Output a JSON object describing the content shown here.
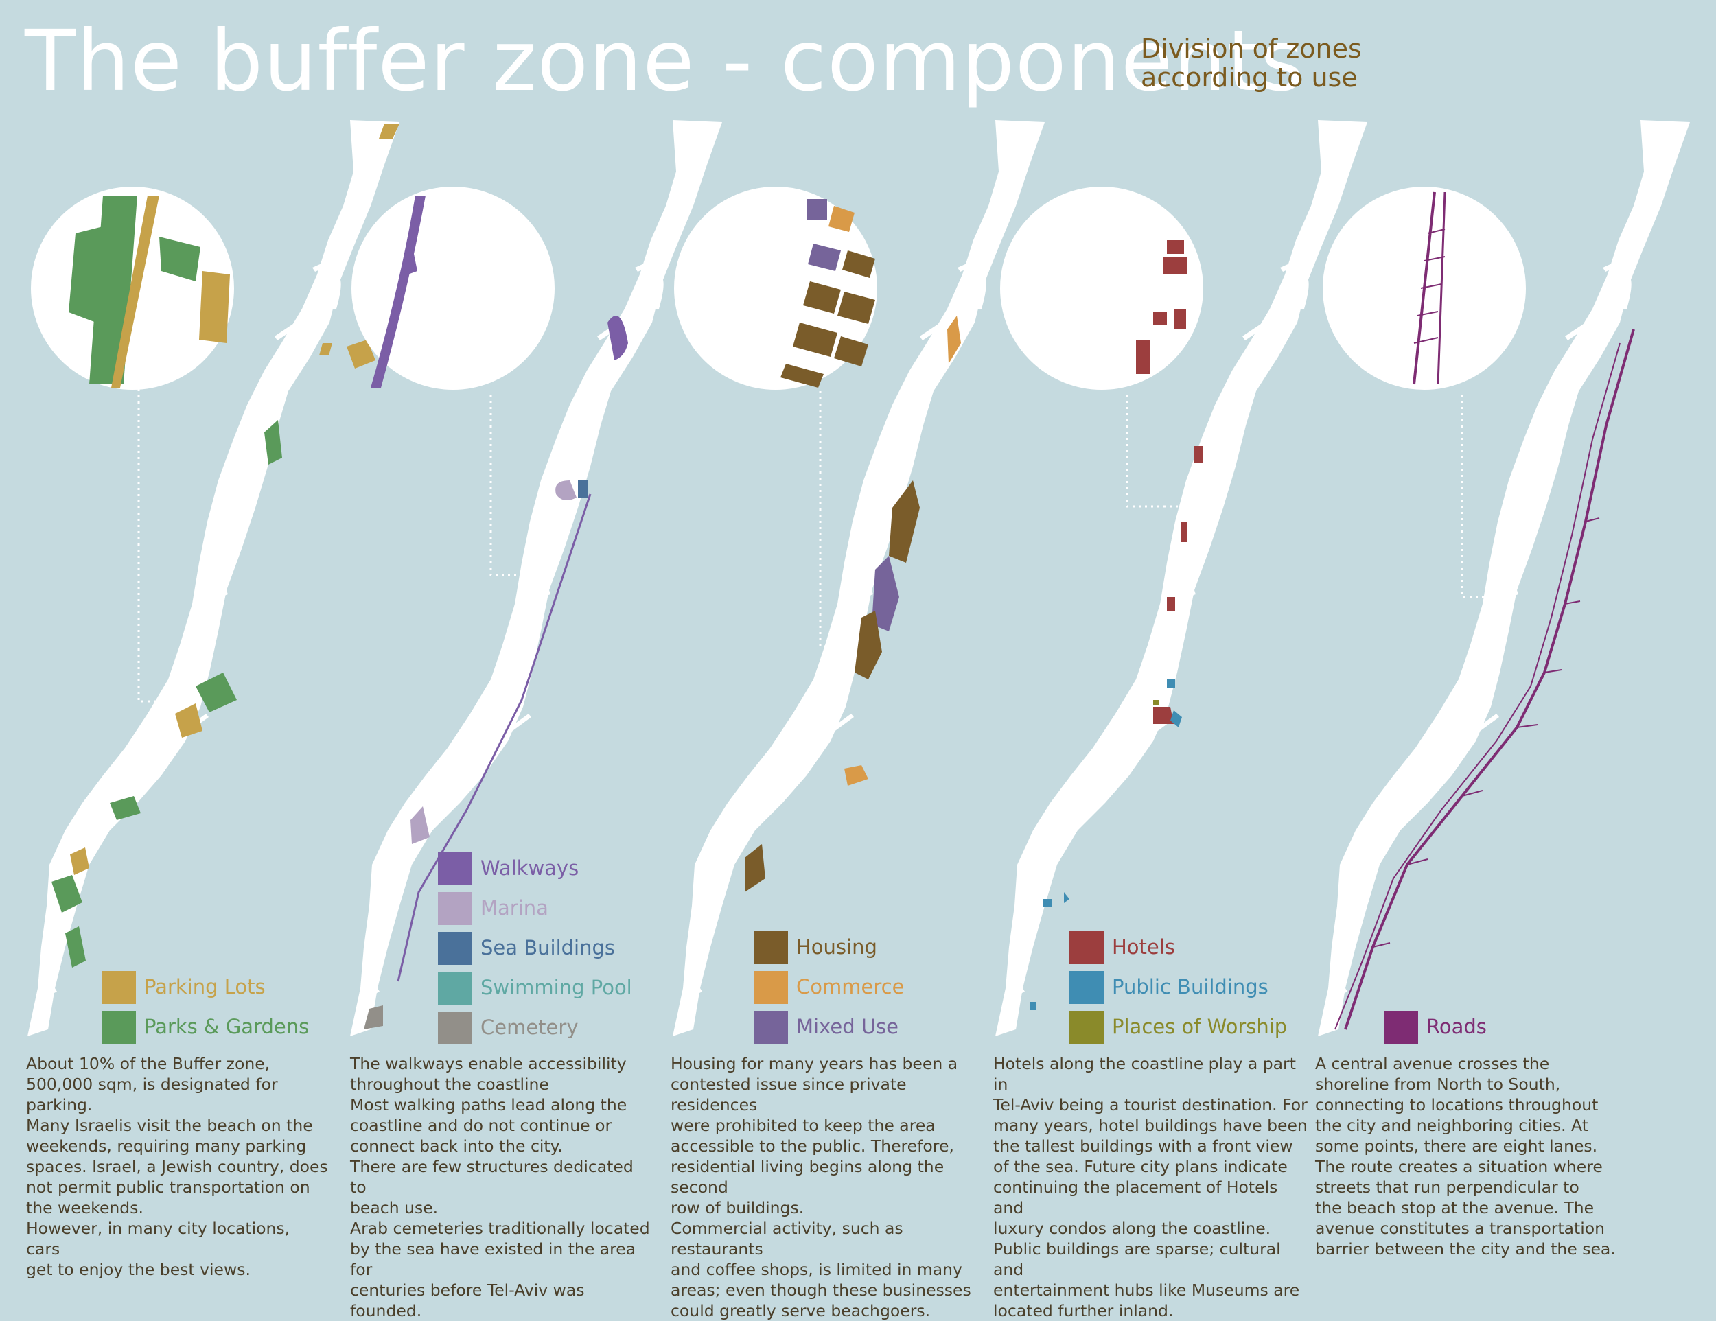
{
  "title": "The buffer zone - components",
  "subtitle": [
    "Division of zones",
    "according to use"
  ],
  "panels": [
    {
      "legend": [
        {
          "label": "Parking Lots",
          "color": "#c6a24a"
        },
        {
          "label": "Parks & Gardens",
          "color": "#5a9a5a"
        }
      ],
      "description": [
        "About 10% of the Buffer zone,",
        "500,000 sqm, is designated for",
        "parking.",
        "Many Israelis visit the beach on the",
        "weekends, requiring many parking",
        "spaces. Israel, a Jewish country, does",
        "not permit public transportation on",
        "the weekends.",
        "However, in many city locations, cars",
        "get to enjoy the best views."
      ]
    },
    {
      "legend": [
        {
          "label": "Walkways",
          "color": "#7b5ea6"
        },
        {
          "label": "Marina",
          "color": "#b3a3c2"
        },
        {
          "label": "Sea Buildings",
          "color": "#4a719a"
        },
        {
          "label": "Swimming Pool",
          "color": "#5fa8a3"
        },
        {
          "label": "Cemetery",
          "color": "#928f89"
        }
      ],
      "description": [
        "The walkways enable accessibility",
        "throughout the coastline",
        "Most walking paths lead along the",
        "coastline and do not continue or",
        "connect back into the city.",
        "There are few structures dedicated to",
        "beach use.",
        "Arab cemeteries traditionally located",
        "by the sea have existed in the area for",
        "centuries before Tel-Aviv was founded."
      ]
    },
    {
      "legend": [
        {
          "label": "Housing",
          "color": "#7a5c2a"
        },
        {
          "label": "Commerce",
          "color": "#d99a48"
        },
        {
          "label": "Mixed Use",
          "color": "#76649a"
        }
      ],
      "description": [
        "Housing for many years has been a",
        "contested issue since private residences",
        "were prohibited to keep the area",
        "accessible to the public. Therefore,",
        "residential living begins along the second",
        "row of buildings.",
        "Commercial activity, such as restaurants",
        "and coffee shops, is limited in many",
        "areas; even though these businesses",
        "could greatly serve beachgoers."
      ]
    },
    {
      "legend": [
        {
          "label": "Hotels",
          "color": "#9c3e3e"
        },
        {
          "label": "Public Buildings",
          "color": "#3f8db3"
        },
        {
          "label": "Places of Worship",
          "color": "#8a8a2a"
        }
      ],
      "description": [
        "Hotels along the coastline play a part in",
        "Tel-Aviv being a tourist destination. For",
        "many years, hotel buildings have been",
        "the tallest buildings with a front view",
        "of the sea. Future city plans indicate",
        "continuing the placement of Hotels and",
        "luxury condos along the coastline.",
        "Public buildings are sparse; cultural and",
        "entertainment hubs like Museums are",
        "located further inland."
      ]
    },
    {
      "legend": [
        {
          "label": "Roads",
          "color": "#7e2c73"
        }
      ],
      "description": [
        "A central avenue crosses the",
        "shoreline from North to South,",
        "connecting to locations throughout",
        "the city and neighboring cities. At",
        "some points, there are eight lanes.",
        "The route creates a situation where",
        "streets that run perpendicular to",
        "the beach stop at the avenue. The",
        "avenue constitutes a transportation",
        "barrier between the city and the sea."
      ]
    }
  ]
}
